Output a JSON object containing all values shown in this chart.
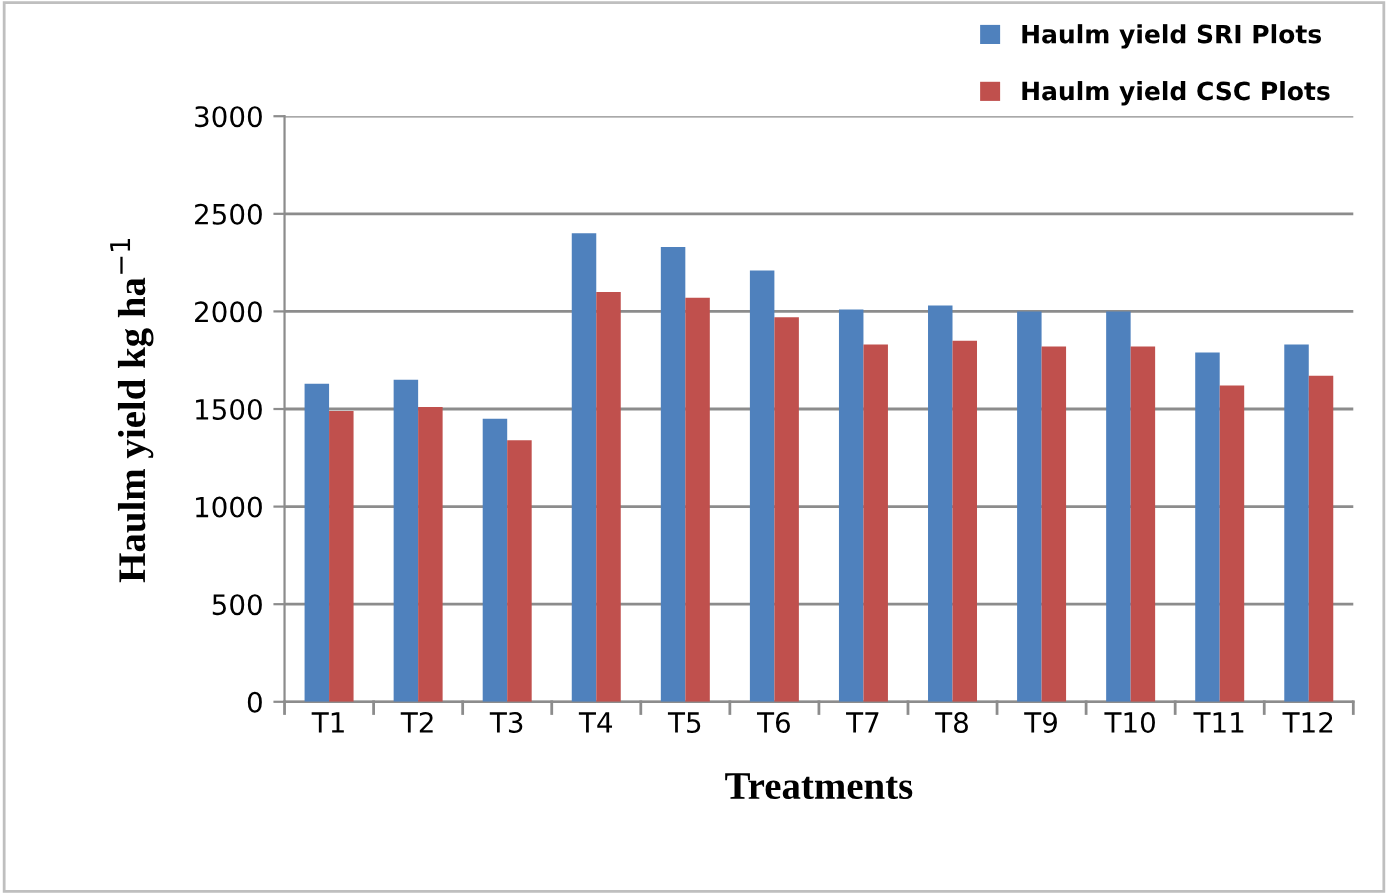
{
  "chart_data": {
    "type": "bar",
    "xlabel": "Treatments",
    "ylabel": "Haulm yield kg ha$^{−1}$",
    "categories": [
      "T1",
      "T2",
      "T3",
      "T4",
      "T5",
      "T6",
      "T7",
      "T8",
      "T9",
      "T10",
      "T11",
      "T12"
    ],
    "series": [
      {
        "name": "Haulm yield SRI Plots",
        "color": "#4f81bd",
        "values": [
          1630,
          1650,
          1450,
          2400,
          2330,
          2210,
          2010,
          2030,
          2000,
          2000,
          1790,
          1830
        ]
      },
      {
        "name": "Haulm yield CSC Plots",
        "color": "#c0504d",
        "values": [
          1490,
          1510,
          1340,
          2100,
          2070,
          1970,
          1830,
          1850,
          1820,
          1820,
          1620,
          1670
        ]
      }
    ],
    "ylim": [
      0,
      3000
    ],
    "yticks": [
      0,
      500,
      1000,
      1500,
      2000,
      2500,
      3000
    ],
    "grid": "y",
    "legend": "top right"
  }
}
